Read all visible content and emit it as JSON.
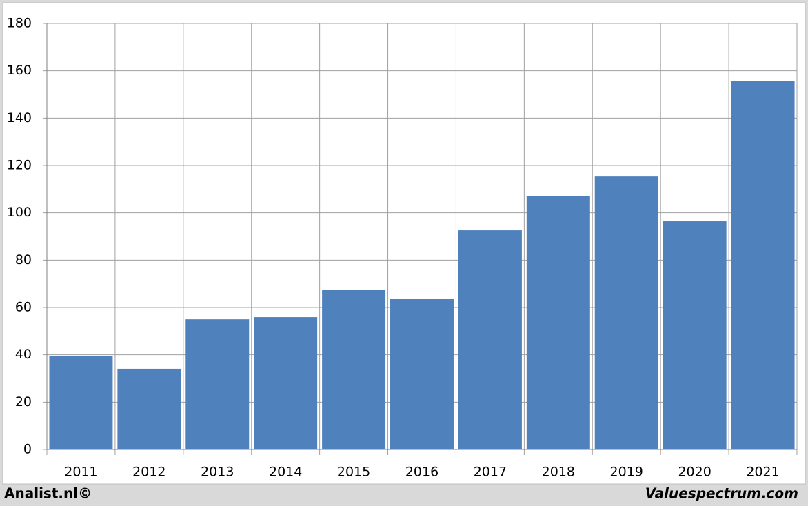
{
  "chart_data": {
    "type": "bar",
    "categories": [
      "2011",
      "2012",
      "2013",
      "2014",
      "2015",
      "2016",
      "2017",
      "2018",
      "2019",
      "2020",
      "2021"
    ],
    "values": [
      39.6,
      34.1,
      55.0,
      55.9,
      67.3,
      63.5,
      92.6,
      106.9,
      115.3,
      96.4,
      155.8
    ],
    "color": "#4f81bd",
    "ylim": [
      0,
      180
    ],
    "yticks": [
      0,
      20,
      40,
      60,
      80,
      100,
      120,
      140,
      160,
      180
    ],
    "grid": true,
    "annotations": [
      "Analist.nl©",
      "Valuespectrum.com"
    ]
  }
}
